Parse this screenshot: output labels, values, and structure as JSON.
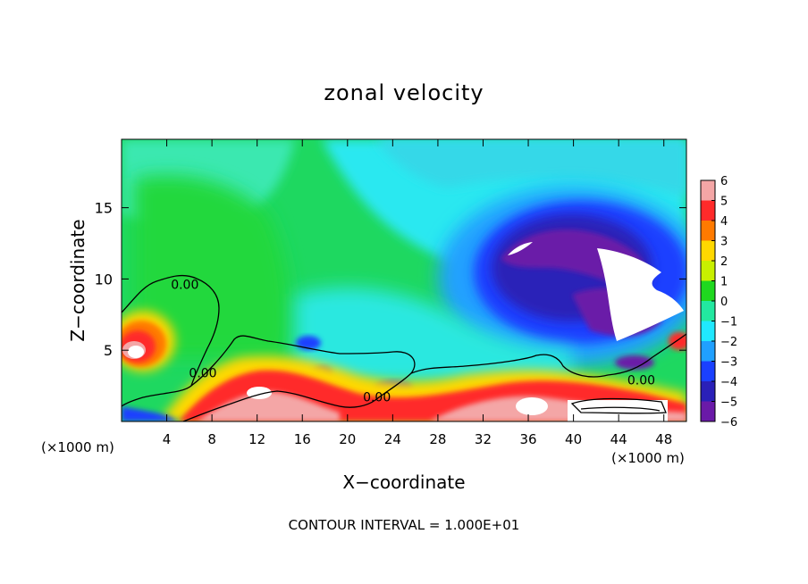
{
  "chart_data": {
    "type": "heatmap",
    "title": "zonal velocity",
    "xlabel": "X−coordinate",
    "ylabel": "Z−coordinate",
    "x_unit": "(×1000 m)",
    "x_unit_right": "(×1000 m)",
    "xlim": [
      0,
      50
    ],
    "ylim": [
      0,
      19.8
    ],
    "x_ticks": [
      4,
      8,
      12,
      16,
      20,
      24,
      28,
      32,
      36,
      40,
      44,
      48
    ],
    "x_tick_labels": [
      "4",
      "8",
      "12",
      "16",
      "20",
      "24",
      "28",
      "32",
      "36",
      "40",
      "44",
      "48"
    ],
    "y_ticks": [
      5,
      10,
      15
    ],
    "y_tick_labels": [
      "5",
      "10",
      "15"
    ],
    "colorbar": {
      "min": -6,
      "max": 6,
      "ticks": [
        6,
        5,
        4,
        3,
        2,
        1,
        0,
        -1,
        -2,
        -3,
        -4,
        -5,
        -6
      ],
      "tick_labels": [
        "6",
        "5",
        "4",
        "3",
        "2",
        "1",
        "0",
        "−1",
        "−2",
        "−3",
        "−4",
        "−5",
        "−6"
      ],
      "colors": [
        "#f4a6a6",
        "#ff2a2a",
        "#ff7a00",
        "#ffd800",
        "#c8f000",
        "#1fd81f",
        "#22e8a0",
        "#20e8ff",
        "#20a0ff",
        "#1a40ff",
        "#2a20b8",
        "#6a1aa8"
      ]
    },
    "contour_labels": [
      {
        "text": "0.00",
        "x": 5.6,
        "y": 9.3
      },
      {
        "text": "0.00",
        "x": 7.2,
        "y": 3.1
      },
      {
        "text": "0.00",
        "x": 22.6,
        "y": 1.4
      },
      {
        "text": "0.00",
        "x": 46.0,
        "y": 2.6
      }
    ],
    "contour_interval_label": "CONTOUR INTERVAL = 1.000E+01"
  }
}
